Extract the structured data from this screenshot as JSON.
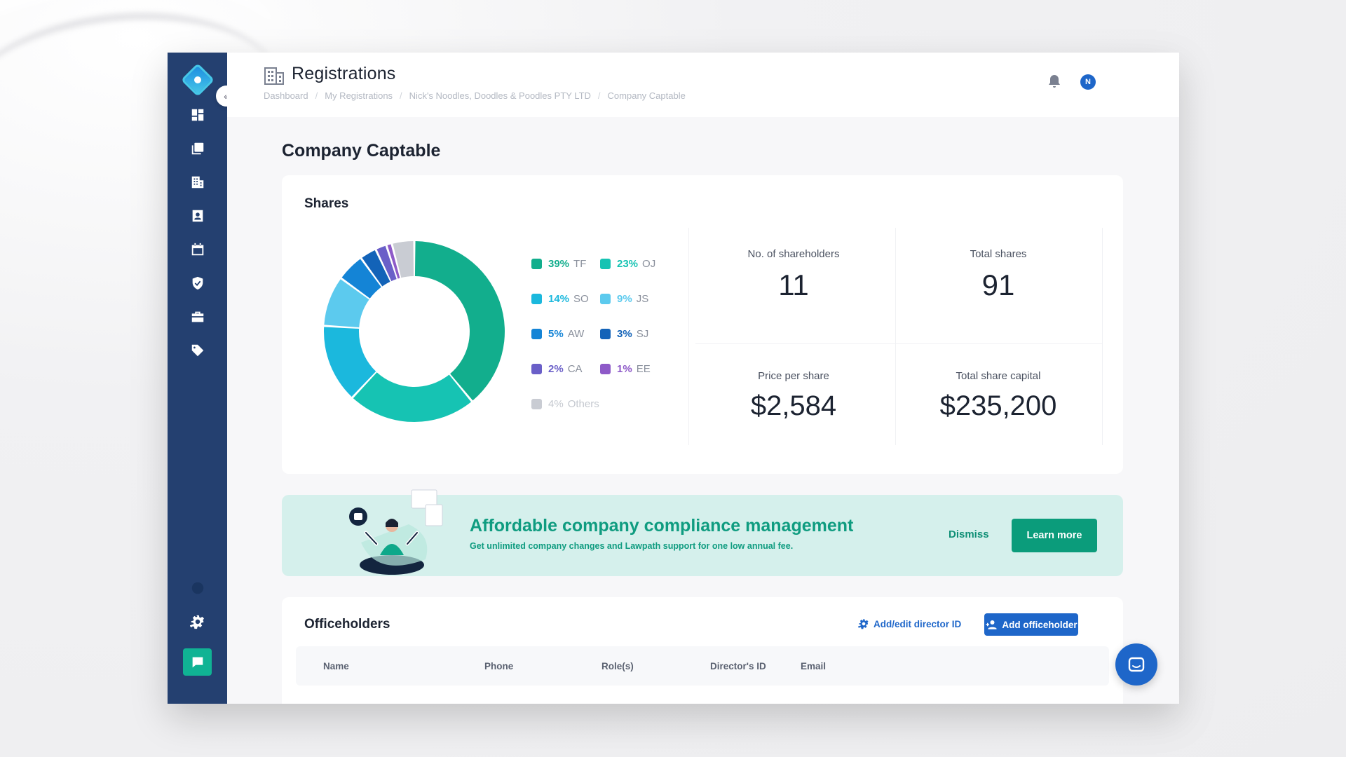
{
  "topbar": {
    "title": "Registrations",
    "breadcrumb": [
      "Dashboard",
      "My Registrations",
      "Nick's Noodles, Doodles & Poodles PTY LTD",
      "Company Captable"
    ],
    "avatar_initial": "N"
  },
  "sidebar": {
    "icons": [
      "dashboard-icon",
      "documents-icon",
      "building-icon",
      "contact-icon",
      "calendar-icon",
      "shield-icon",
      "briefcase-icon",
      "tag-icon",
      "info-icon",
      "gear-icon",
      "chat-support-icon"
    ]
  },
  "page": {
    "title": "Company Captable"
  },
  "shares": {
    "title": "Shares",
    "chart_data": {
      "type": "pie",
      "categories": [
        "TF",
        "OJ",
        "SO",
        "JS",
        "AW",
        "SJ",
        "CA",
        "EE",
        "Others"
      ],
      "values": [
        39,
        23,
        14,
        9,
        5,
        3,
        2,
        1,
        4
      ],
      "colors": [
        "#12ae8d",
        "#16c3b3",
        "#1bb8dd",
        "#5ccaee",
        "#1484d6",
        "#1363b8",
        "#6a5fc8",
        "#8e5ac8",
        "#c9ccd3"
      ]
    },
    "legend": [
      {
        "pct": "39%",
        "code": "TF",
        "color": "#12ae8d"
      },
      {
        "pct": "23%",
        "code": "OJ",
        "color": "#16c3b3"
      },
      {
        "pct": "14%",
        "code": "SO",
        "color": "#1bb8dd"
      },
      {
        "pct": "9%",
        "code": "JS",
        "color": "#5ccaee"
      },
      {
        "pct": "5%",
        "code": "AW",
        "color": "#1484d6"
      },
      {
        "pct": "3%",
        "code": "SJ",
        "color": "#1363b8"
      },
      {
        "pct": "2%",
        "code": "CA",
        "color": "#6a5fc8"
      },
      {
        "pct": "1%",
        "code": "EE",
        "color": "#8e5ac8"
      },
      {
        "pct": "4%",
        "code": "Others",
        "color": "#c9ccd3"
      }
    ],
    "stats": {
      "shareholders_label": "No. of shareholders",
      "shareholders_value": "11",
      "total_shares_label": "Total shares",
      "total_shares_value": "91",
      "price_label": "Price per share",
      "price_value": "$2,584",
      "capital_label": "Total share capital",
      "capital_value": "$235,200"
    }
  },
  "banner": {
    "title": "Affordable company compliance management",
    "subtitle": "Get unlimited company changes and Lawpath support for one low annual fee.",
    "dismiss": "Dismiss",
    "learn_more": "Learn more"
  },
  "officeholders": {
    "title": "Officeholders",
    "add_director_id": "Add/edit director ID",
    "add_officeholder": "Add officeholder",
    "columns": [
      "Name",
      "Phone",
      "Role(s)",
      "Director's ID",
      "Email"
    ]
  }
}
